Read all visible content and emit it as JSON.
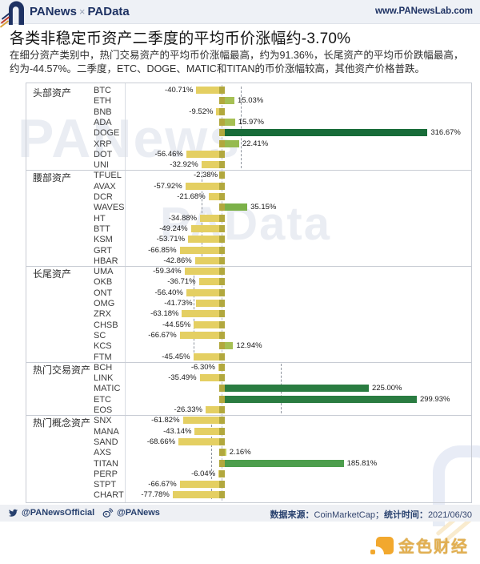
{
  "header": {
    "logo_primary": "PANews",
    "logo_sep": "×",
    "logo_secondary": "PAData",
    "url": "www.PANewsLab.com"
  },
  "title": {
    "text": "各类非稳定币资产二季度的平均币价涨幅约-3.70%"
  },
  "description": {
    "text": "在细分资产类别中，热门交易资产的平均币价涨幅最高，约为91.36%，长尾资产的平均币价跌幅最高，约为-44.57%。二季度，ETC、DOGE、MATIC和TITAN的币价涨幅较高，其他资产价格普跌。"
  },
  "watermarks": {
    "wm1": "PANews",
    "wm2": "PAData",
    "jinse_text": "金色财经"
  },
  "footer": {
    "twitter_handle": "@PANewsOfficial",
    "weibo_handle": "@PANews",
    "source_label": "数据来源：",
    "source_value": "CoinMarketCap；",
    "time_label": "统计时间：",
    "time_value": "2021/06/30"
  },
  "chart_data": {
    "type": "bar",
    "orientation": "horizontal",
    "unit": "%",
    "overall_average": -3.7,
    "xlim": [
      -100,
      390
    ],
    "grid": false,
    "legend": "none",
    "groups": [
      {
        "category": "头部资产",
        "average": 28.81,
        "items": [
          {
            "label": "BTC",
            "value": -40.71
          },
          {
            "label": "ETH",
            "value": 15.03
          },
          {
            "label": "BNB",
            "value": -9.52
          },
          {
            "label": "ADA",
            "value": 15.97
          },
          {
            "label": "DOGE",
            "value": 316.67
          },
          {
            "label": "XRP",
            "value": 22.41
          },
          {
            "label": "DOT",
            "value": -56.46
          },
          {
            "label": "UNI",
            "value": -32.92
          }
        ]
      },
      {
        "category": "腰部资产",
        "average": -32.71,
        "items": [
          {
            "label": "TFUEL",
            "value": -2.38
          },
          {
            "label": "AVAX",
            "value": -57.92
          },
          {
            "label": "DCR",
            "value": -21.68
          },
          {
            "label": "WAVES",
            "value": 35.15
          },
          {
            "label": "HT",
            "value": -34.88
          },
          {
            "label": "BTT",
            "value": -49.24
          },
          {
            "label": "KSM",
            "value": -53.71
          },
          {
            "label": "GRT",
            "value": -66.85
          },
          {
            "label": "HBAR",
            "value": -42.86
          }
        ]
      },
      {
        "category": "长尾资产",
        "average": -44.57,
        "items": [
          {
            "label": "UMA",
            "value": -59.34
          },
          {
            "label": "OKB",
            "value": -36.71
          },
          {
            "label": "ONT",
            "value": -56.4
          },
          {
            "label": "OMG",
            "value": -41.73
          },
          {
            "label": "ZRX",
            "value": -63.18
          },
          {
            "label": "CHSB",
            "value": -44.55
          },
          {
            "label": "SC",
            "value": -66.67
          },
          {
            "label": "KCS",
            "value": 12.94
          },
          {
            "label": "FTM",
            "value": -45.45
          }
        ]
      },
      {
        "category": "热门交易资产",
        "average": 91.36,
        "items": [
          {
            "label": "BCH",
            "value": -6.3
          },
          {
            "label": "LINK",
            "value": -35.49
          },
          {
            "label": "MATIC",
            "value": 225.0
          },
          {
            "label": "ETC",
            "value": 299.93
          },
          {
            "label": "EOS",
            "value": -26.33
          }
        ]
      },
      {
        "category": "热门概念资产",
        "average": -17.02,
        "items": [
          {
            "label": "SNX",
            "value": -61.82
          },
          {
            "label": "MANA",
            "value": -43.14
          },
          {
            "label": "SAND",
            "value": -68.66
          },
          {
            "label": "AXS",
            "value": 2.16
          },
          {
            "label": "TITAN",
            "value": 185.81
          },
          {
            "label": "PERP",
            "value": -6.04
          },
          {
            "label": "STPT",
            "value": -66.67
          },
          {
            "label": "CHART",
            "value": -77.78
          }
        ]
      }
    ],
    "palette": {
      "negative": "#e4cf62",
      "marker": "#b2a83e",
      "pos_tiny": "#c8cd5e",
      "pos_small": "#a6c054",
      "pos_med": "#96ba4f",
      "pos_30": "#7cb149",
      "pos_100": "#4d9e4d",
      "pos_200": "#2a7c41",
      "pos_300": "#186c39"
    }
  }
}
